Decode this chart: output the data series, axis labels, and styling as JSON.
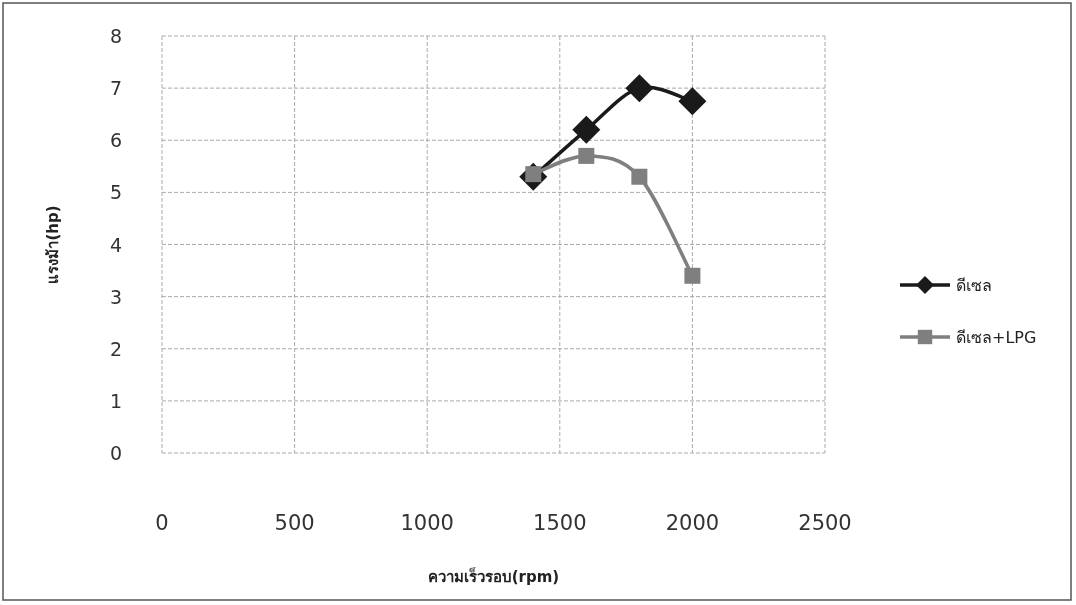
{
  "chart_data": {
    "type": "line",
    "xlabel": "ความเร็วรอบ(rpm)",
    "ylabel": "แรงม้า(hp)",
    "x": [
      1400,
      1600,
      1800,
      2000
    ],
    "series": [
      {
        "name": "ดีเซล",
        "color": "#1a1a1a",
        "marker": "diamond",
        "values": [
          5.3,
          6.2,
          7.0,
          6.75
        ]
      },
      {
        "name": "ดีเซล+LPG",
        "color": "#7f7f7f",
        "marker": "square",
        "values": [
          5.35,
          5.7,
          5.3,
          3.4
        ]
      }
    ],
    "xlim": [
      0,
      2500
    ],
    "xticks": [
      0,
      500,
      1000,
      1500,
      2000,
      2500
    ],
    "ylim": [
      0,
      8
    ],
    "yticks": [
      0,
      1,
      2,
      3,
      4,
      5,
      6,
      7,
      8
    ],
    "grid": true,
    "legend": "right"
  }
}
